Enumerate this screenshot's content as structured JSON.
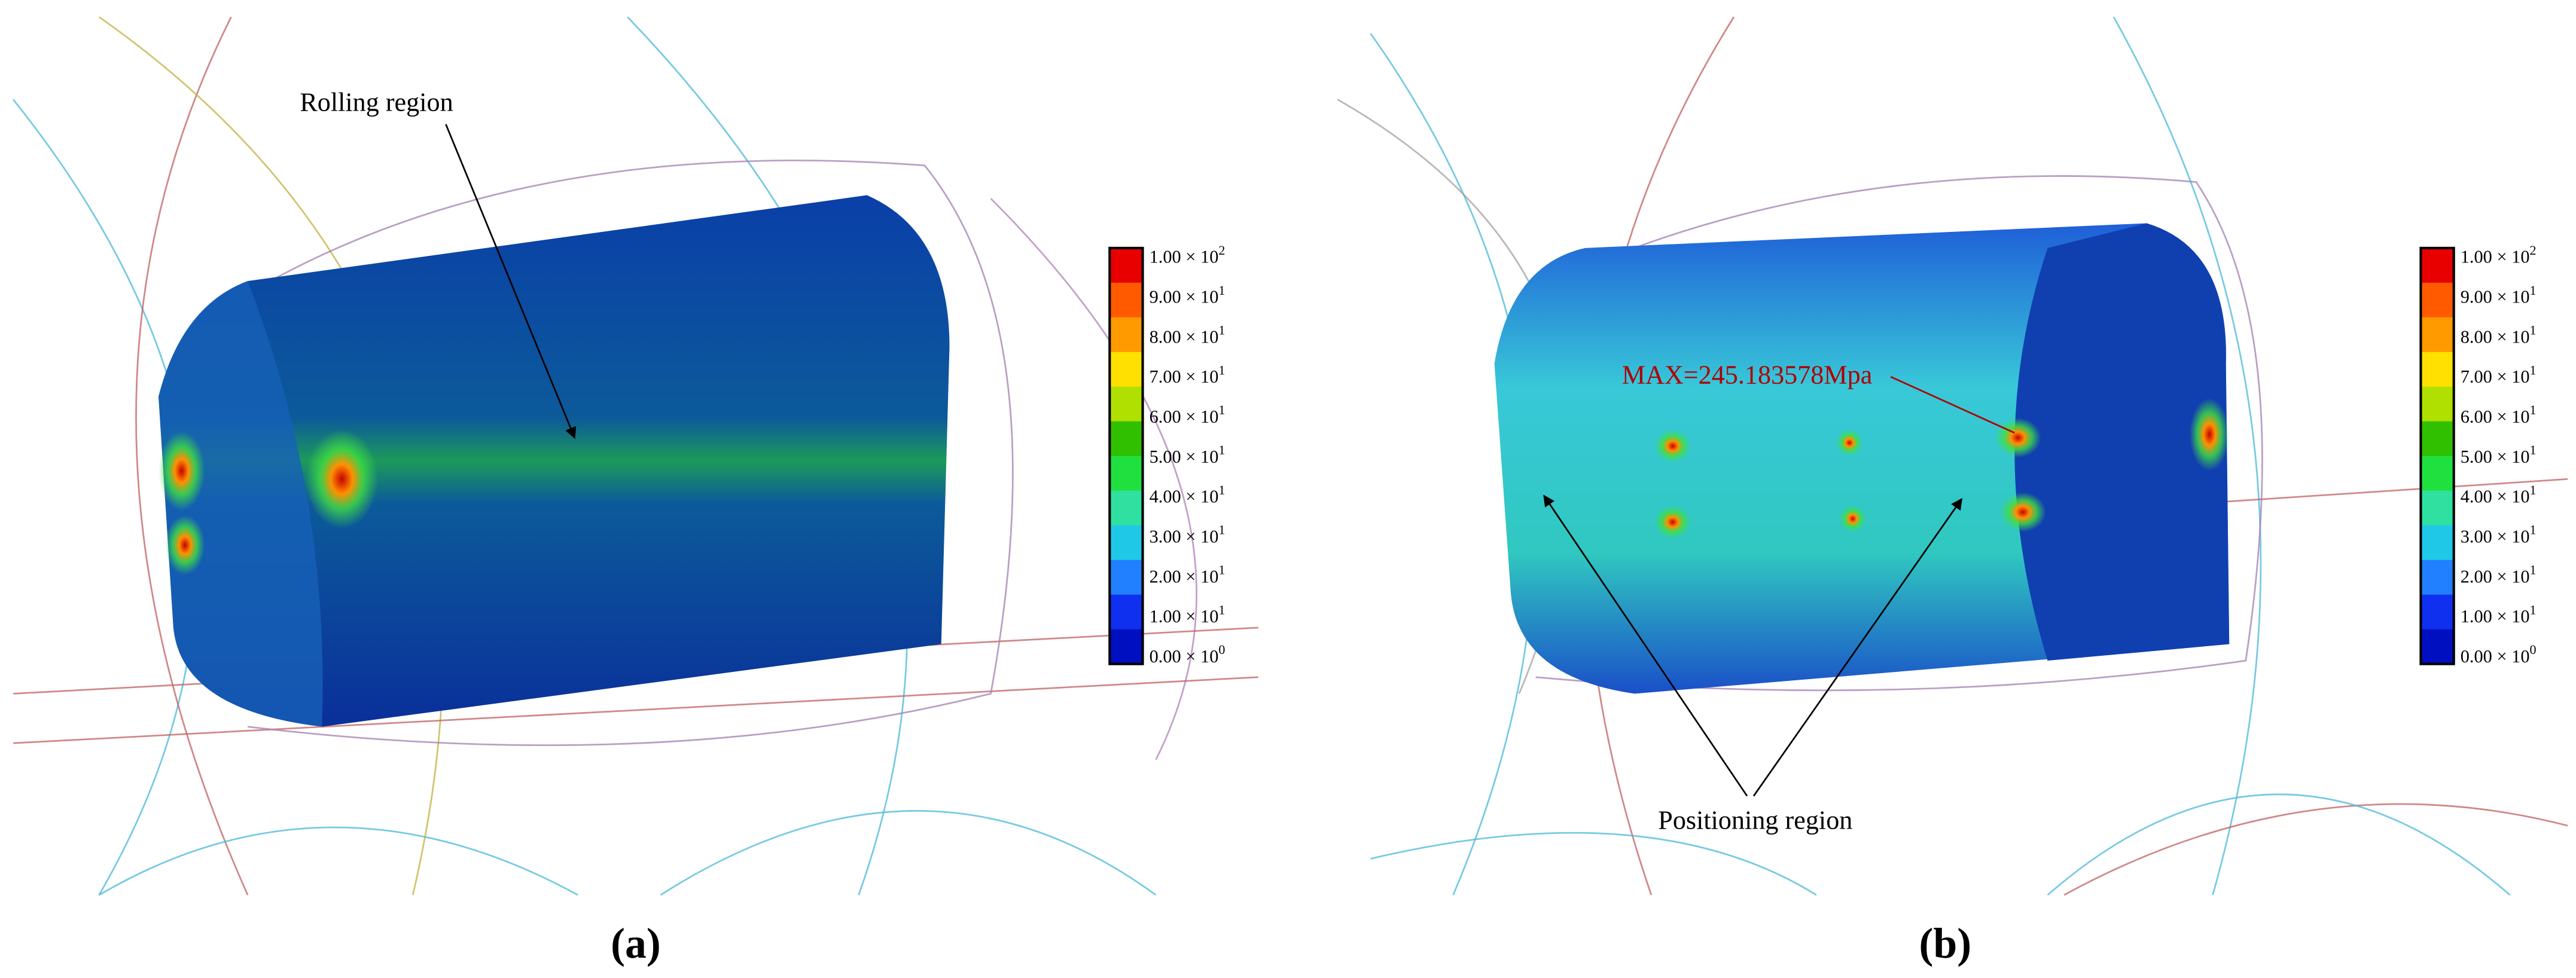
{
  "panels": [
    {
      "label": "(a)",
      "annotations": [
        "Rolling region"
      ],
      "colorbar": [
        {
          "base": "1.00 × 10",
          "exp": "2"
        },
        {
          "base": "9.00 × 10",
          "exp": "1"
        },
        {
          "base": "8.00 × 10",
          "exp": "1"
        },
        {
          "base": "7.00 × 10",
          "exp": "1"
        },
        {
          "base": "6.00 × 10",
          "exp": "1"
        },
        {
          "base": "5.00 × 10",
          "exp": "1"
        },
        {
          "base": "4.00 × 10",
          "exp": "1"
        },
        {
          "base": "3.00 × 10",
          "exp": "1"
        },
        {
          "base": "2.00 × 10",
          "exp": "1"
        },
        {
          "base": "1.00 × 10",
          "exp": "1"
        },
        {
          "base": "0.00 × 10",
          "exp": "0"
        }
      ]
    },
    {
      "label": "(b)",
      "annotations": [
        "MAX=245.183578Mpa",
        "Positioning region"
      ],
      "colorbar": [
        {
          "base": "1.00 × 10",
          "exp": "2"
        },
        {
          "base": "9.00 × 10",
          "exp": "1"
        },
        {
          "base": "8.00 × 10",
          "exp": "1"
        },
        {
          "base": "7.00 × 10",
          "exp": "1"
        },
        {
          "base": "6.00 × 10",
          "exp": "1"
        },
        {
          "base": "5.00 × 10",
          "exp": "1"
        },
        {
          "base": "4.00 × 10",
          "exp": "1"
        },
        {
          "base": "3.00 × 10",
          "exp": "1"
        },
        {
          "base": "2.00 × 10",
          "exp": "1"
        },
        {
          "base": "1.00 × 10",
          "exp": "1"
        },
        {
          "base": "0.00 × 10",
          "exp": "0"
        }
      ]
    }
  ]
}
